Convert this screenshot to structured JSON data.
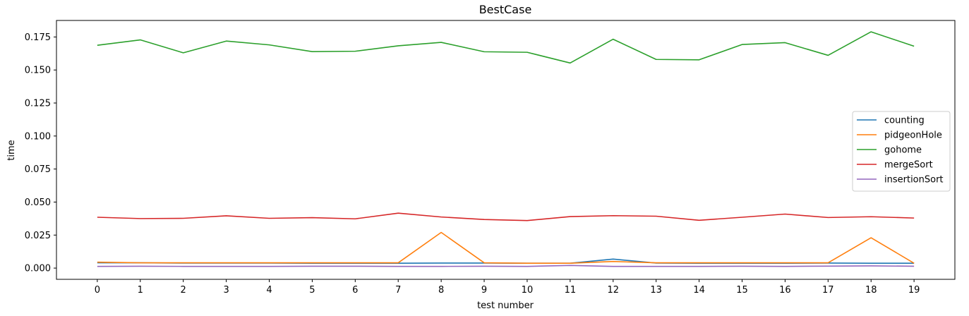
{
  "chart_data": {
    "type": "line",
    "title": "BestCase",
    "xlabel": "test number",
    "ylabel": "time",
    "x": [
      0,
      1,
      2,
      3,
      4,
      5,
      6,
      7,
      8,
      9,
      10,
      11,
      12,
      13,
      14,
      15,
      16,
      17,
      18,
      19
    ],
    "xticks": [
      "0",
      "1",
      "2",
      "3",
      "4",
      "5",
      "6",
      "7",
      "8",
      "9",
      "10",
      "11",
      "12",
      "13",
      "14",
      "15",
      "16",
      "17",
      "18",
      "19"
    ],
    "yticks": [
      "0.000",
      "0.025",
      "0.050",
      "0.075",
      "0.100",
      "0.125",
      "0.150",
      "0.175"
    ],
    "ytick_values": [
      0,
      0.025,
      0.05,
      0.075,
      0.1,
      0.125,
      0.15,
      0.175
    ],
    "xlim": [
      -0.95,
      19.95
    ],
    "ylim": [
      -0.0085,
      0.1875
    ],
    "grid": false,
    "legend_position": "center-right",
    "series": [
      {
        "name": "counting",
        "color": "#1f77b4",
        "values": [
          0.004,
          0.004,
          0.0038,
          0.0038,
          0.0038,
          0.0037,
          0.0037,
          0.0037,
          0.0038,
          0.0038,
          0.0037,
          0.0037,
          0.0068,
          0.0038,
          0.0037,
          0.0037,
          0.0037,
          0.0038,
          0.0037,
          0.0037
        ]
      },
      {
        "name": "pidgeonHole",
        "color": "#ff7f0e",
        "values": [
          0.0045,
          0.004,
          0.004,
          0.004,
          0.004,
          0.004,
          0.004,
          0.004,
          0.027,
          0.004,
          0.0037,
          0.0037,
          0.005,
          0.004,
          0.004,
          0.004,
          0.004,
          0.004,
          0.023,
          0.0037
        ]
      },
      {
        "name": "gohome",
        "color": "#2ca02c",
        "values": [
          0.1687,
          0.1728,
          0.163,
          0.1719,
          0.169,
          0.1639,
          0.1642,
          0.1683,
          0.1709,
          0.1638,
          0.1634,
          0.1553,
          0.1733,
          0.158,
          0.1577,
          0.1693,
          0.1707,
          0.1611,
          0.1789,
          0.168
        ]
      },
      {
        "name": "mergeSort",
        "color": "#d62728",
        "values": [
          0.0385,
          0.0375,
          0.0377,
          0.0396,
          0.0377,
          0.0382,
          0.0373,
          0.0416,
          0.0387,
          0.0368,
          0.036,
          0.039,
          0.0397,
          0.0393,
          0.0362,
          0.0385,
          0.0409,
          0.0383,
          0.0389,
          0.0379
        ]
      },
      {
        "name": "insertionSort",
        "color": "#9467bd",
        "values": [
          0.0013,
          0.0014,
          0.0013,
          0.0013,
          0.0013,
          0.0014,
          0.0014,
          0.0013,
          0.0013,
          0.0014,
          0.0013,
          0.002,
          0.0013,
          0.0013,
          0.0013,
          0.0014,
          0.0013,
          0.0015,
          0.0017,
          0.0014
        ]
      }
    ]
  }
}
